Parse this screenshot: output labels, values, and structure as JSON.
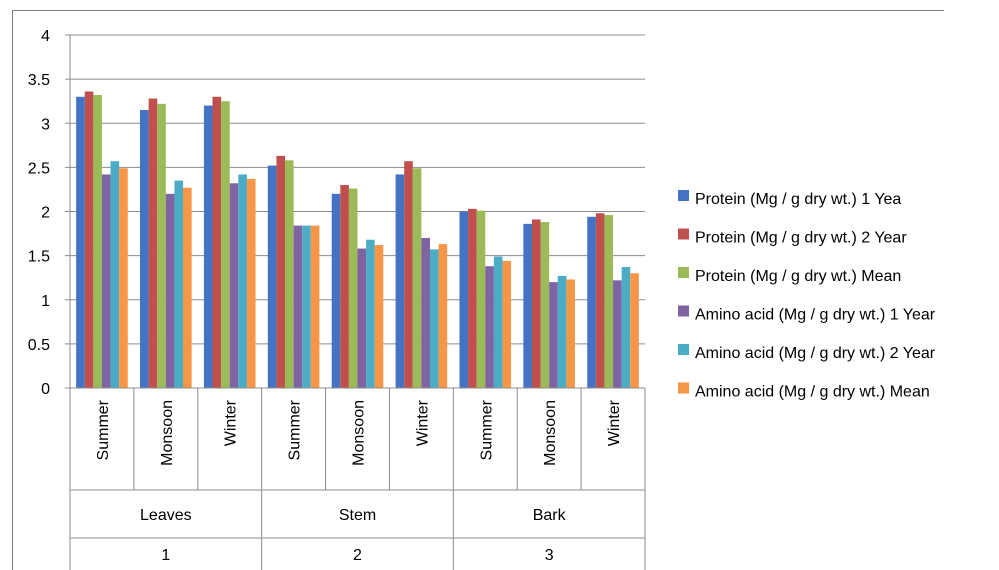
{
  "chart_data": {
    "type": "bar",
    "title": "",
    "xlabel": "",
    "ylabel": "",
    "ylim": [
      0,
      4
    ],
    "yticks": [
      "0",
      "0.5",
      "1",
      "1.5",
      "2",
      "2.5",
      "3",
      "3.5",
      "4"
    ],
    "grid": true,
    "legend_position": "right",
    "categories": [
      "Summer",
      "Monsoon",
      "Winter",
      "Summer",
      "Monsoon",
      "Winter",
      "Summer",
      "Monsoon",
      "Winter"
    ],
    "groups": [
      {
        "label": "Leaves",
        "index": "1"
      },
      {
        "label": "Stem",
        "index": "2"
      },
      {
        "label": "Bark",
        "index": "3"
      }
    ],
    "series": [
      {
        "name": "Protein (Mg / g dry wt.) 1 Yea",
        "color": "#4472C4",
        "values": [
          3.3,
          3.15,
          3.2,
          2.52,
          2.2,
          2.42,
          2.0,
          1.86,
          1.94
        ]
      },
      {
        "name": "Protein (Mg / g dry wt.) 2 Year",
        "color": "#C0504D",
        "values": [
          3.36,
          3.28,
          3.3,
          2.63,
          2.3,
          2.57,
          2.03,
          1.91,
          1.98
        ]
      },
      {
        "name": "Protein (Mg / g dry wt.) Mean",
        "color": "#9BBB59",
        "values": [
          3.32,
          3.22,
          3.25,
          2.58,
          2.26,
          2.49,
          2.01,
          1.88,
          1.96
        ]
      },
      {
        "name": "Amino acid (Mg / g dry wt.) 1 Year",
        "color": "#8064A2",
        "values": [
          2.42,
          2.2,
          2.32,
          1.84,
          1.58,
          1.7,
          1.38,
          1.2,
          1.22
        ]
      },
      {
        "name": "Amino acid (Mg / g dry wt.) 2 Year",
        "color": "#4BACC6",
        "values": [
          2.57,
          2.35,
          2.42,
          1.84,
          1.68,
          1.57,
          1.49,
          1.27,
          1.37
        ]
      },
      {
        "name": "Amino acid (Mg / g dry wt.) Mean",
        "color": "#F79646",
        "values": [
          2.49,
          2.27,
          2.37,
          1.84,
          1.62,
          1.63,
          1.44,
          1.23,
          1.3
        ]
      }
    ]
  }
}
